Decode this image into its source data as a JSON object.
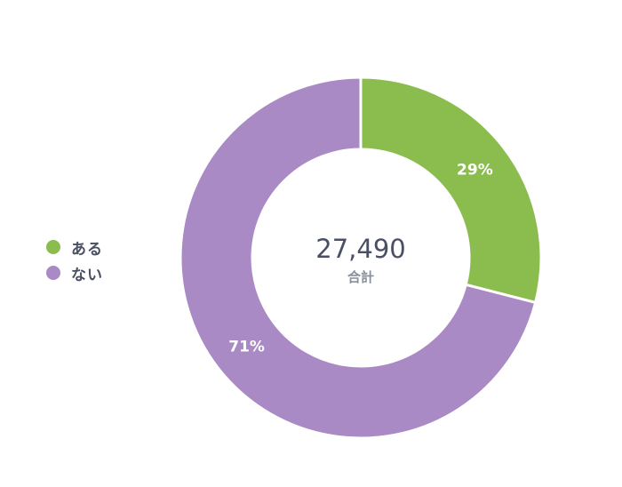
{
  "chart_data": {
    "type": "pie",
    "variant": "donut",
    "categories": [
      "ある",
      "ない"
    ],
    "values": [
      29,
      71
    ],
    "percent_labels": [
      "29%",
      "71%"
    ],
    "colors": [
      "#8bbd4e",
      "#a98ac4"
    ],
    "center_total": "27,490",
    "center_caption": "合計",
    "legend_position": "left"
  }
}
